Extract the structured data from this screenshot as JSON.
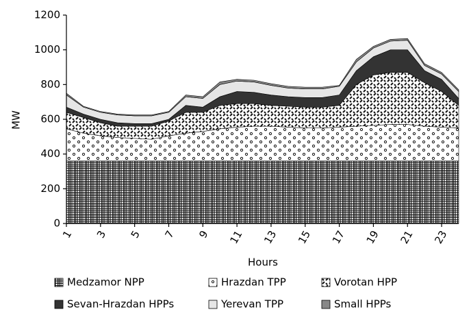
{
  "chart_data": {
    "type": "stacked-area",
    "x_label": "Hours",
    "y_label": "MW",
    "x": [
      1,
      2,
      3,
      4,
      5,
      6,
      7,
      8,
      9,
      10,
      11,
      12,
      13,
      14,
      15,
      16,
      17,
      18,
      19,
      20,
      21,
      22,
      23,
      24
    ],
    "xlim": [
      1,
      24
    ],
    "xticks": [
      1,
      3,
      5,
      7,
      9,
      11,
      13,
      15,
      17,
      19,
      21,
      23
    ],
    "ylim": [
      0,
      1200
    ],
    "yticks": [
      0,
      200,
      400,
      600,
      800,
      1000,
      1200
    ],
    "series": [
      {
        "name": "Medzamor NPP",
        "color": "#111111",
        "pattern": "grid",
        "values": [
          360,
          360,
          360,
          360,
          360,
          360,
          360,
          360,
          360,
          360,
          360,
          360,
          360,
          360,
          360,
          360,
          360,
          360,
          360,
          360,
          360,
          360,
          360,
          360
        ]
      },
      {
        "name": "Hrazdan TPP",
        "color": "#111111",
        "pattern": "circles",
        "values": [
          185,
          160,
          145,
          135,
          130,
          125,
          145,
          160,
          170,
          185,
          195,
          200,
          200,
          195,
          190,
          190,
          195,
          200,
          205,
          210,
          210,
          200,
          195,
          190
        ]
      },
      {
        "name": "Vorotan HPP",
        "color": "#111111",
        "pattern": "dashes",
        "values": [
          95,
          90,
          75,
          65,
          70,
          75,
          85,
          120,
          110,
          135,
          135,
          130,
          120,
          120,
          120,
          120,
          125,
          240,
          290,
          300,
          300,
          250,
          205,
          130
        ]
      },
      {
        "name": "Sevan-Hrazdan HPPs",
        "color": "#333333",
        "pattern": "solid",
        "values": [
          30,
          20,
          20,
          20,
          15,
          15,
          10,
          40,
          30,
          50,
          70,
          65,
          60,
          55,
          55,
          55,
          60,
          80,
          105,
          130,
          130,
          70,
          70,
          40
        ]
      },
      {
        "name": "Yerevan TPP",
        "color": "#e6e6e6",
        "pattern": "solid",
        "values": [
          70,
          40,
          40,
          45,
          45,
          45,
          40,
          50,
          50,
          70,
          60,
          60,
          55,
          50,
          50,
          50,
          50,
          50,
          50,
          50,
          55,
          30,
          30,
          40
        ]
      },
      {
        "name": "Small HPPs",
        "color": "#888888",
        "pattern": "solid",
        "values": [
          10,
          5,
          5,
          5,
          5,
          5,
          5,
          10,
          10,
          15,
          10,
          10,
          10,
          10,
          10,
          10,
          5,
          15,
          10,
          10,
          10,
          10,
          10,
          10
        ]
      }
    ]
  }
}
